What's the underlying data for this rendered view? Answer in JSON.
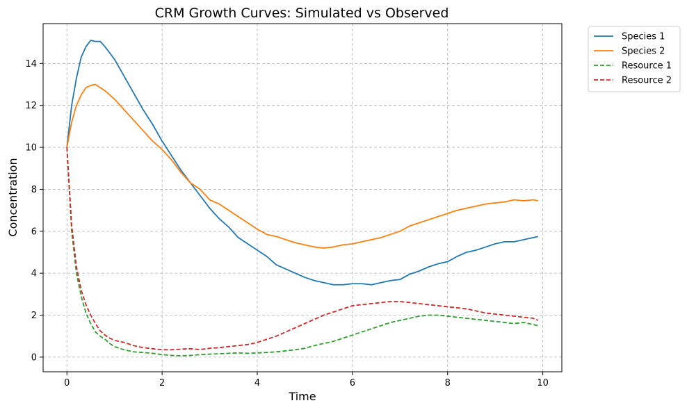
{
  "chart_data": {
    "type": "line",
    "title": "CRM Growth Curves: Simulated vs Observed",
    "xlabel": "Time",
    "ylabel": "Concentration",
    "xlim": [
      -0.5,
      10.4
    ],
    "ylim": [
      -0.7,
      15.9
    ],
    "xticks": [
      0,
      2,
      4,
      6,
      8,
      10
    ],
    "yticks": [
      0,
      2,
      4,
      6,
      8,
      10,
      12,
      14
    ],
    "grid": true,
    "legend_position": "upper-right-outside",
    "x": [
      0,
      0.1,
      0.2,
      0.3,
      0.4,
      0.5,
      0.6,
      0.7,
      0.8,
      0.9,
      1.0,
      1.2,
      1.4,
      1.6,
      1.8,
      2.0,
      2.2,
      2.4,
      2.6,
      2.8,
      3.0,
      3.2,
      3.4,
      3.6,
      3.8,
      4.0,
      4.2,
      4.4,
      4.6,
      4.8,
      5.0,
      5.2,
      5.4,
      5.6,
      5.8,
      6.0,
      6.2,
      6.4,
      6.6,
      6.8,
      7.0,
      7.2,
      7.4,
      7.6,
      7.8,
      8.0,
      8.2,
      8.4,
      8.6,
      8.8,
      9.0,
      9.2,
      9.4,
      9.6,
      9.8,
      9.9
    ],
    "series": [
      {
        "name": "Species 1",
        "color": "#1f77b4",
        "dash": "solid",
        "values": [
          10.0,
          12.0,
          13.3,
          14.3,
          14.8,
          15.1,
          15.05,
          15.05,
          14.8,
          14.5,
          14.2,
          13.4,
          12.6,
          11.8,
          11.1,
          10.3,
          9.6,
          8.9,
          8.3,
          7.7,
          7.1,
          6.6,
          6.2,
          5.7,
          5.4,
          5.1,
          4.8,
          4.4,
          4.2,
          4.0,
          3.8,
          3.65,
          3.55,
          3.45,
          3.45,
          3.5,
          3.5,
          3.45,
          3.55,
          3.65,
          3.7,
          3.95,
          4.1,
          4.3,
          4.45,
          4.55,
          4.8,
          5.0,
          5.1,
          5.25,
          5.4,
          5.5,
          5.5,
          5.6,
          5.7,
          5.75
        ]
      },
      {
        "name": "Species 2",
        "color": "#ff7f0e",
        "dash": "solid",
        "values": [
          10.0,
          11.2,
          12.0,
          12.5,
          12.85,
          12.95,
          13.0,
          12.85,
          12.7,
          12.5,
          12.3,
          11.8,
          11.3,
          10.8,
          10.3,
          9.9,
          9.4,
          8.8,
          8.3,
          8.0,
          7.5,
          7.3,
          7.0,
          6.7,
          6.4,
          6.1,
          5.85,
          5.75,
          5.6,
          5.45,
          5.35,
          5.25,
          5.2,
          5.25,
          5.35,
          5.4,
          5.5,
          5.6,
          5.7,
          5.85,
          6.0,
          6.25,
          6.4,
          6.55,
          6.7,
          6.85,
          7.0,
          7.1,
          7.2,
          7.3,
          7.35,
          7.4,
          7.5,
          7.45,
          7.5,
          7.45
        ]
      },
      {
        "name": "Resource 1",
        "color": "#2ca02c",
        "dash": "dashed",
        "values": [
          10.0,
          6.0,
          4.0,
          2.9,
          2.1,
          1.6,
          1.2,
          1.0,
          0.85,
          0.65,
          0.5,
          0.35,
          0.25,
          0.22,
          0.18,
          0.12,
          0.08,
          0.06,
          0.08,
          0.12,
          0.14,
          0.16,
          0.18,
          0.2,
          0.18,
          0.2,
          0.22,
          0.25,
          0.3,
          0.35,
          0.42,
          0.55,
          0.65,
          0.75,
          0.9,
          1.05,
          1.2,
          1.35,
          1.5,
          1.65,
          1.75,
          1.85,
          1.95,
          2.0,
          2.0,
          1.95,
          1.9,
          1.85,
          1.8,
          1.75,
          1.7,
          1.65,
          1.6,
          1.65,
          1.55,
          1.5
        ]
      },
      {
        "name": "Resource 2",
        "color": "#d62728",
        "dash": "dashed",
        "values": [
          10.0,
          6.3,
          4.3,
          3.2,
          2.5,
          2.0,
          1.6,
          1.25,
          1.05,
          0.9,
          0.8,
          0.7,
          0.55,
          0.45,
          0.4,
          0.35,
          0.35,
          0.38,
          0.4,
          0.36,
          0.42,
          0.45,
          0.5,
          0.55,
          0.6,
          0.7,
          0.85,
          1.0,
          1.2,
          1.4,
          1.6,
          1.8,
          2.0,
          2.15,
          2.3,
          2.45,
          2.5,
          2.55,
          2.6,
          2.65,
          2.65,
          2.6,
          2.55,
          2.5,
          2.45,
          2.4,
          2.35,
          2.3,
          2.2,
          2.1,
          2.05,
          2.0,
          1.95,
          1.9,
          1.85,
          1.75
        ]
      }
    ]
  }
}
